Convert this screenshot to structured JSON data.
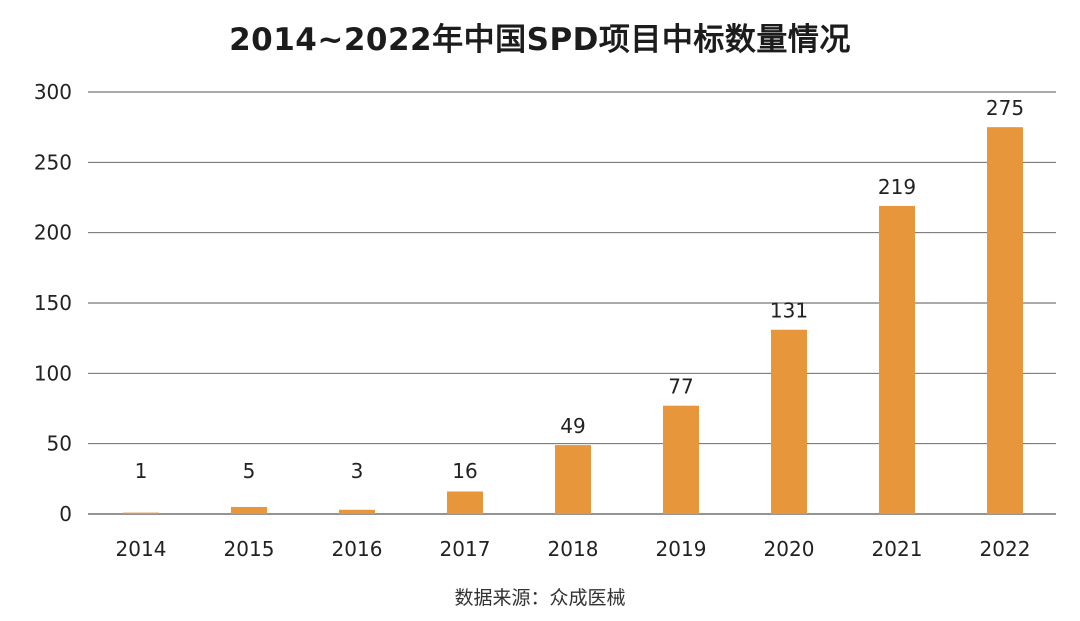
{
  "chart_data": {
    "type": "bar",
    "title": "2014~2022年中国SPD项目中标数量情况",
    "categories": [
      "2014",
      "2015",
      "2016",
      "2017",
      "2018",
      "2019",
      "2020",
      "2021",
      "2022"
    ],
    "values": [
      1,
      5,
      3,
      16,
      49,
      77,
      131,
      219,
      275
    ],
    "data_labels": [
      "1",
      "5",
      "3",
      "16",
      "49",
      "77",
      "131",
      "219",
      "275"
    ],
    "xlabel": "",
    "ylabel": "",
    "ylim": [
      0,
      300
    ],
    "yticks": [
      0,
      50,
      100,
      150,
      200,
      250,
      300
    ],
    "grid": true,
    "legend": "none",
    "bar_color": "#E8963C",
    "grid_color": "#555555",
    "source": "数据来源：众成医械"
  }
}
